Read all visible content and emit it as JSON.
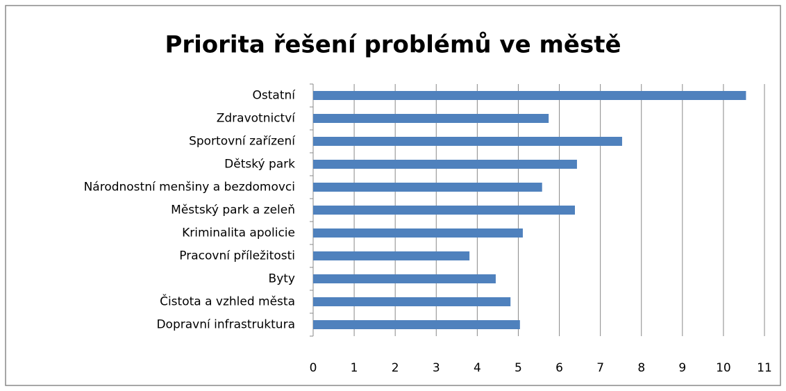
{
  "chart_data": {
    "type": "barh",
    "title": "Priorita řešení problémů ve městě",
    "categories": [
      "Ostatní",
      "Zdravotnictví",
      "Sportovní zařízení",
      "Dětský park",
      "Národnostní menšiny a bezdomovci",
      "Městský park a zeleň",
      "Kriminalita  apolicie",
      "Pracovní příležitosti",
      "Byty",
      "Čistota a vzhled města",
      "Dopravní infrastruktura"
    ],
    "values": [
      10.55,
      5.74,
      7.53,
      6.43,
      5.58,
      6.38,
      5.11,
      3.81,
      4.45,
      4.81,
      5.04
    ],
    "color": "#4f81bd",
    "xlim": [
      0,
      11
    ],
    "xticks": [
      0,
      1,
      2,
      3,
      4,
      5,
      6,
      7,
      8,
      9,
      10,
      11
    ],
    "grid": true
  }
}
